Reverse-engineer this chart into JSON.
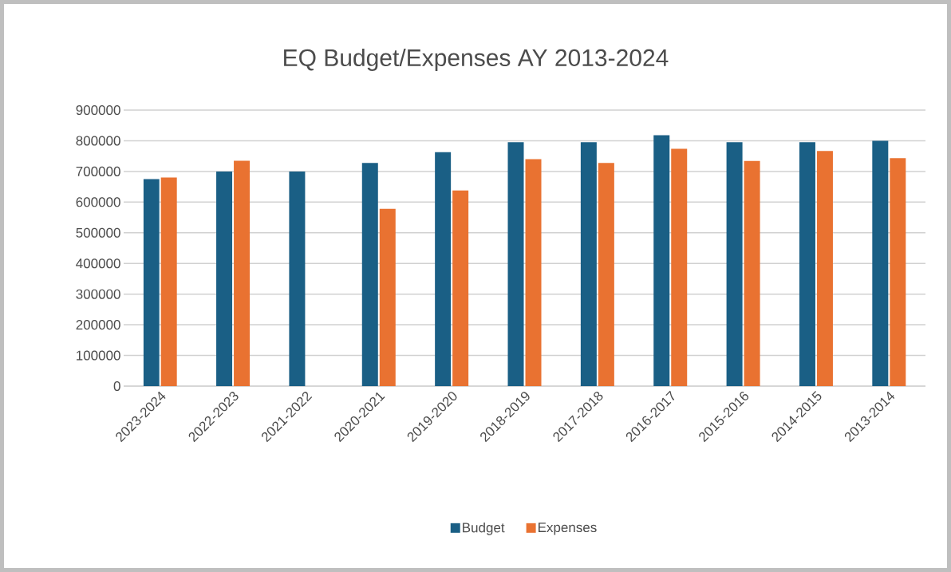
{
  "chart_data": {
    "type": "bar",
    "title": "EQ Budget/Expenses AY 2013-2024",
    "categories": [
      "2023-2024",
      "2022-2023",
      "2021-2022",
      "2020-2021",
      "2019-2020",
      "2018-2019",
      "2017-2018",
      "2016-2017",
      "2015-2016",
      "2014-2015",
      "2013-2014"
    ],
    "series": [
      {
        "name": "Budget",
        "color": "#1a5f85",
        "values": [
          675000,
          700000,
          700000,
          728000,
          763000,
          795000,
          795000,
          818000,
          795000,
          795000,
          800000
        ]
      },
      {
        "name": "Expenses",
        "color": "#e97231",
        "values": [
          680000,
          735000,
          null,
          578000,
          638000,
          740000,
          728000,
          774000,
          734000,
          767000,
          743000
        ]
      }
    ],
    "ylim": [
      0,
      900000
    ],
    "yticks": [
      0,
      100000,
      200000,
      300000,
      400000,
      500000,
      600000,
      700000,
      800000,
      900000
    ],
    "grid": "y",
    "legend": "bottom"
  }
}
